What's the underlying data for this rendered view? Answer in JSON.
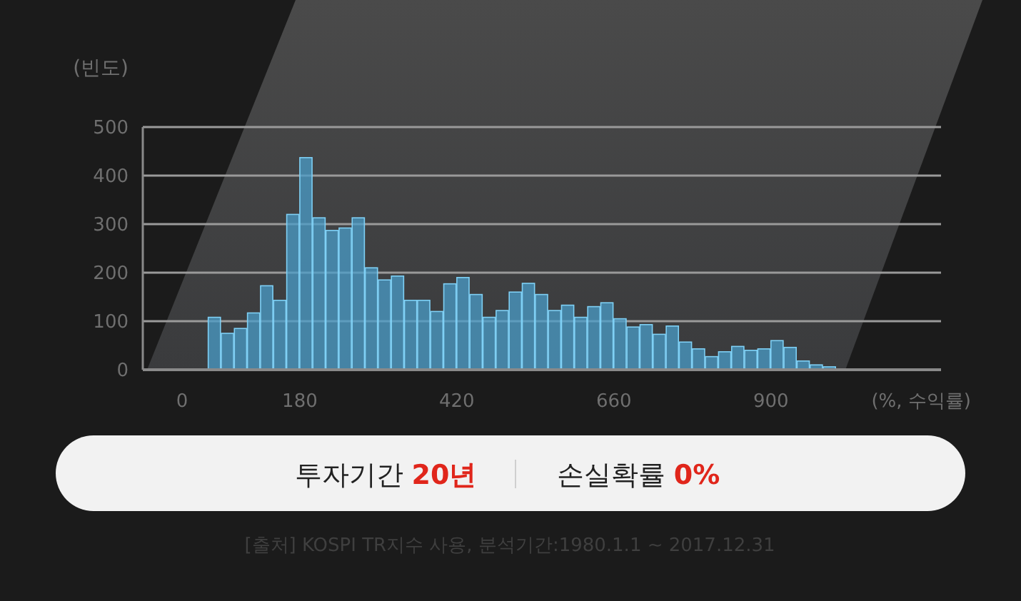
{
  "chart_data": {
    "type": "histogram",
    "xlabel": "(%, 수익률)",
    "ylabel": "(빈도)",
    "bins": [
      40,
      60,
      80,
      100,
      120,
      140,
      160,
      180,
      200,
      220,
      240,
      260,
      280,
      300,
      320,
      340,
      360,
      380,
      400,
      420,
      440,
      460,
      480,
      500,
      520,
      540,
      560,
      580,
      600,
      620,
      640,
      660,
      680,
      700,
      720,
      740,
      760,
      780,
      800,
      820,
      840,
      860,
      880,
      900,
      920,
      940,
      960,
      980,
      1000
    ],
    "values": [
      108,
      75,
      85,
      117,
      173,
      143,
      320,
      437,
      313,
      287,
      292,
      313,
      210,
      185,
      193,
      143,
      143,
      120,
      177,
      190,
      155,
      108,
      122,
      160,
      178,
      155,
      122,
      133,
      108,
      130,
      138,
      105,
      88,
      93,
      73,
      90,
      57,
      43,
      27,
      37,
      48,
      40,
      43,
      60,
      46,
      18,
      10,
      6
    ],
    "color": "#4a9cc8",
    "xlim": [
      -60,
      1160
    ],
    "xticks": [
      0,
      180,
      420,
      660,
      900
    ],
    "ylim": [
      0,
      500
    ],
    "yticks": [
      0,
      100,
      200,
      300,
      400,
      500
    ],
    "grid": "y",
    "annotations": [
      "투자기간 20년",
      "손실확률 0%",
      "[출처] KOSPI TR지수 사용, 분석기간:1980.1.1 ~ 2017.12.31"
    ]
  }
}
